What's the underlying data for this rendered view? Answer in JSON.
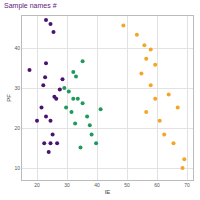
{
  "chart_data": {
    "type": "scatter",
    "title": "Sample names #",
    "x_label": "IE",
    "y_label": "PF",
    "xlim": [
      15,
      72
    ],
    "ylim": [
      7,
      48
    ],
    "xticks": [
      20,
      30,
      40,
      50,
      60,
      70
    ],
    "yticks": [
      10,
      20,
      30,
      40
    ],
    "grid": true,
    "series": [
      {
        "color": "#4b1370",
        "x": [
          23,
          24.5,
          25.5,
          17.5,
          23,
          22.7,
          22.1,
          25.8,
          26.4,
          27.6,
          28.5,
          21.5,
          23,
          24.5,
          20,
          25.2,
          26.7,
          24.5,
          22.4,
          23.9
        ],
        "values": [
          47,
          46,
          44,
          34.5,
          36.2,
          32.7,
          30.7,
          27.8,
          27.3,
          29.6,
          32.2,
          25.1,
          22.9,
          21.8,
          21.8,
          18.4,
          16.2,
          16.2,
          16.2,
          14
        ]
      },
      {
        "color": "#1e9a5c",
        "x": [
          35.2,
          32.1,
          33,
          29.1,
          30.6,
          33.6,
          35.2,
          29.7,
          31.5,
          37.6,
          38.2,
          41.2,
          32.7,
          36.7,
          34.5,
          39.7,
          32.1
        ],
        "values": [
          36.7,
          34,
          32.9,
          30,
          29.1,
          27.3,
          26.2,
          25.1,
          24,
          20.7,
          18.4,
          24.7,
          21.1,
          22.9,
          15.1,
          16.2,
          27.3
        ]
      },
      {
        "color": "#f5a524",
        "x": [
          48.8,
          53.3,
          55.8,
          57.9,
          56.4,
          59.4,
          54.8,
          57.9,
          63.9,
          59.4,
          56.4,
          60.9,
          66.9,
          65.5,
          69.1,
          68.5,
          62.4
        ],
        "values": [
          45.6,
          43.3,
          40.7,
          39.6,
          37.3,
          35.8,
          33.6,
          30.7,
          28.4,
          27.3,
          24,
          21.8,
          25.1,
          16.2,
          12.2,
          10,
          18.4
        ]
      }
    ]
  }
}
